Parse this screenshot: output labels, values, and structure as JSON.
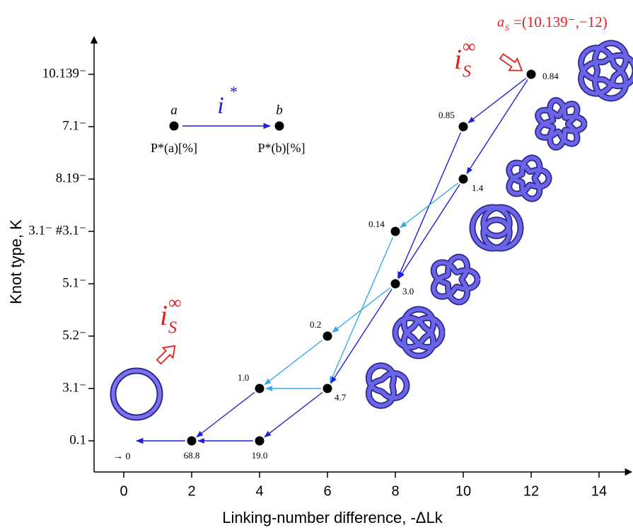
{
  "chart_data": {
    "type": "scatter",
    "xlabel": "Linking-number difference, -ΔLk",
    "ylabel": "Knot type, K",
    "xlim": [
      -0.875,
      15
    ],
    "xticks": [
      0,
      2,
      4,
      6,
      8,
      10,
      12,
      14
    ],
    "categories": [
      "0.1",
      "3.1⁻",
      "5.2⁻",
      "5.1⁻",
      "3.1⁻ #3.1⁻",
      "8.19⁻",
      "7.1⁻",
      "10.139⁻"
    ],
    "x": [
      12,
      10,
      10,
      8,
      8,
      6,
      6,
      4,
      4,
      2
    ],
    "y": [
      "10.139⁻",
      "7.1⁻",
      "8.19⁻",
      "3.1⁻ #3.1⁻",
      "5.1⁻",
      "5.2⁻",
      "3.1⁻",
      "3.1⁻",
      "0.1",
      "0.1"
    ],
    "values": [
      0.84,
      0.85,
      1.4,
      0.14,
      3,
      0.2,
      4.7,
      1,
      19,
      68.8
    ],
    "value_labels": [
      "0.84",
      "0.85",
      "1.4",
      "0.14",
      "3.0",
      "0.2",
      "4.7",
      "1.0",
      "19.0",
      "68.8"
    ],
    "color": "#000000",
    "transitions": [
      {
        "from": 0,
        "to": 1,
        "color": "#1f1fd6"
      },
      {
        "from": 0,
        "to": 2,
        "color": "#1f1fd6"
      },
      {
        "from": 1,
        "to": 4,
        "color": "#1f1fd6"
      },
      {
        "from": 2,
        "to": 4,
        "color": "#1f1fd6"
      },
      {
        "from": 2,
        "to": 3,
        "color": "#36aaea"
      },
      {
        "from": 3,
        "to": 6,
        "color": "#36aaea"
      },
      {
        "from": 4,
        "to": 5,
        "color": "#36aaea"
      },
      {
        "from": 4,
        "to": 6,
        "color": "#1f1fd6"
      },
      {
        "from": 5,
        "to": 7,
        "color": "#36aaea"
      },
      {
        "from": 6,
        "to": 7,
        "color": "#36aaea"
      },
      {
        "from": 6,
        "to": 8,
        "color": "#1f1fd6"
      },
      {
        "from": 7,
        "to": 9,
        "color": "#1f1fd6"
      },
      {
        "from": 8,
        "to": 9,
        "color": "#1f1fd6"
      }
    ],
    "annotations": {
      "unknot_limit": "→ 0",
      "rate_symbol": "i",
      "rate_sub": "S",
      "rate_sup": "∞",
      "start": "a",
      "start_sub": "S",
      "start_value": "=(10.139⁻,−12)"
    },
    "key": {
      "from": "a",
      "to": "b",
      "map": "i",
      "map_sup": "*",
      "from_label": "P*(a)[%]",
      "to_label": "P*(b)[%]"
    }
  }
}
